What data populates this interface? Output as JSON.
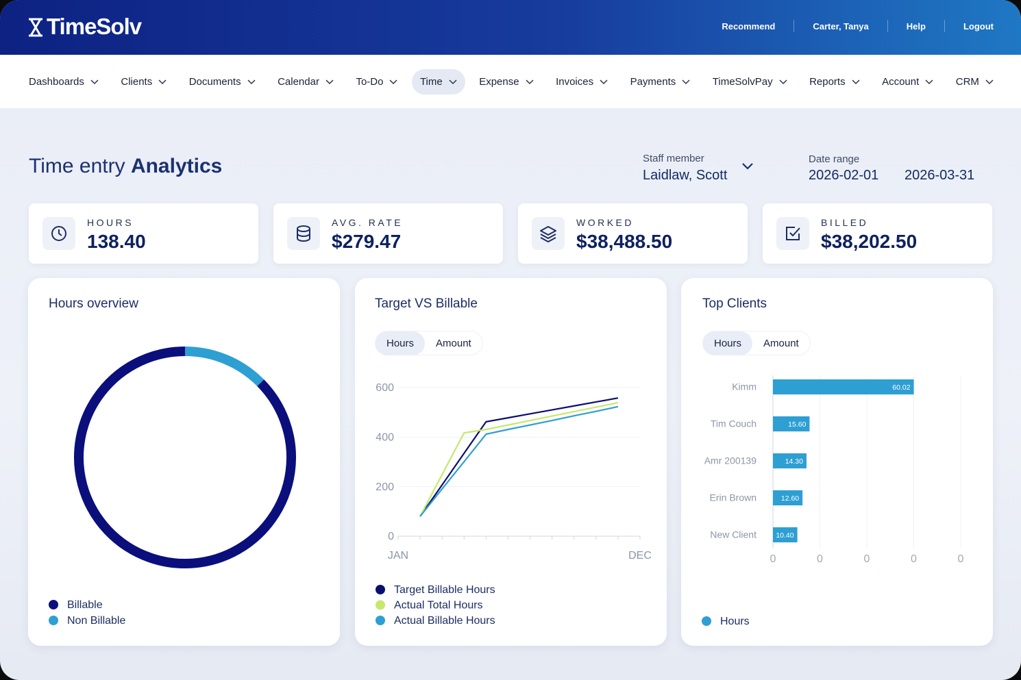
{
  "header": {
    "logo": "TimeSolv",
    "links": [
      "Recommend",
      "Carter, Tanya",
      "Help",
      "Logout"
    ]
  },
  "nav": {
    "items": [
      {
        "label": "Dashboards"
      },
      {
        "label": "Clients"
      },
      {
        "label": "Documents"
      },
      {
        "label": "Calendar"
      },
      {
        "label": "To-Do"
      },
      {
        "label": "Time",
        "active": true
      },
      {
        "label": "Expense"
      },
      {
        "label": "Invoices"
      },
      {
        "label": "Payments"
      },
      {
        "label": "TimeSolvPay"
      },
      {
        "label": "Reports"
      },
      {
        "label": "Account"
      },
      {
        "label": "CRM"
      }
    ]
  },
  "page": {
    "title": "Time entry",
    "title_bold": "Analytics",
    "staff_label": "Staff member",
    "staff": "Laidlaw, Scott",
    "date_label": "Date range",
    "date_start": "2026-02-01",
    "date_end": "2026-03-31"
  },
  "stats": [
    {
      "label": "HOURS",
      "value": "138.40"
    },
    {
      "label": "AVG. RATE",
      "value": "$279.47"
    },
    {
      "label": "WORKED",
      "value": "$38,488.50"
    },
    {
      "label": "BILLED",
      "value": "$38,202.50"
    }
  ],
  "chart_data": [
    {
      "type": "pie",
      "donut": true,
      "title": "Hours overview",
      "categories": [
        "Billable",
        "Non Billable"
      ],
      "values": [
        87.4,
        12.6
      ],
      "colors": [
        "#0a0f7c",
        "#2e9fd3"
      ]
    },
    {
      "type": "line",
      "title": "Target VS Billable",
      "toggle": {
        "options": [
          "Hours",
          "Amount"
        ],
        "selected": 0
      },
      "categories": [
        "JAN",
        null,
        null,
        null,
        null,
        null,
        null,
        null,
        null,
        null,
        null,
        "DEC"
      ],
      "series": [
        {
          "name": "Target Billable Hours",
          "color": "#0a0f6e",
          "values": [
            null,
            80,
            207,
            335,
            462,
            478,
            494,
            510,
            526,
            542,
            558,
            null
          ]
        },
        {
          "name": "Actual Total Hours",
          "color": "#c6e86e",
          "values": [
            null,
            80,
            249,
            417,
            431,
            449,
            467,
            485,
            503,
            521,
            539,
            null
          ]
        },
        {
          "name": "Actual Billable Hours",
          "color": "#2e9fd3",
          "values": [
            null,
            80,
            191,
            301,
            412,
            431,
            449,
            467,
            486,
            504,
            523,
            null
          ]
        }
      ],
      "ylim": [
        0,
        600
      ],
      "yticks": [
        0,
        200,
        400,
        600
      ],
      "grid": true
    },
    {
      "type": "bar",
      "orientation": "horizontal",
      "title": "Top Clients",
      "toggle": {
        "options": [
          "Hours",
          "Amount"
        ],
        "selected": 0
      },
      "categories": [
        "Kimm",
        "Tim Couch",
        "Amr 200139",
        "Erin Brown",
        "New Client"
      ],
      "series": [
        {
          "name": "Hours",
          "color": "#2e9fd3",
          "values": [
            60.02,
            15.6,
            14.3,
            12.6,
            10.4
          ],
          "value_labels": [
            "60.02",
            "15.60",
            "14.30",
            "12.60",
            "10.40"
          ]
        }
      ],
      "xlim": [
        0,
        80
      ],
      "xticks": [
        0,
        {
          "value": 20,
          "label": "0"
        },
        {
          "value": 40,
          "label": "0"
        },
        {
          "value": 60,
          "label": "0"
        },
        {
          "value": 80,
          "label": "0"
        }
      ],
      "grid": true
    }
  ]
}
